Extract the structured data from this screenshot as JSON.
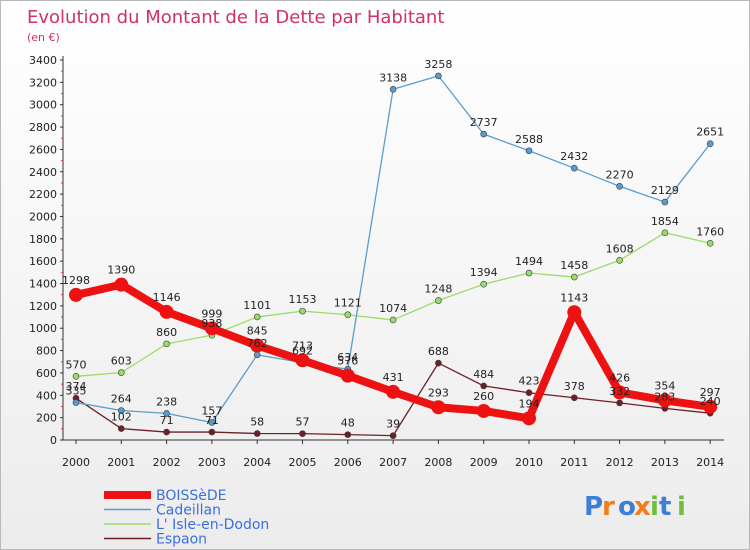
{
  "chart_data": {
    "type": "line",
    "title": "Evolution du Montant de la Dette par Habitant",
    "subtitle": "(en €)",
    "xlabel": "",
    "ylabel": "",
    "x": [
      "2000",
      "2001",
      "2002",
      "2003",
      "2004",
      "2005",
      "2006",
      "2007",
      "2008",
      "2009",
      "2010",
      "2011",
      "2012",
      "2013",
      "2014"
    ],
    "ylim": [
      0,
      3400
    ],
    "yticks": [
      0,
      200,
      400,
      600,
      800,
      1000,
      1200,
      1400,
      1600,
      1800,
      2000,
      2200,
      2400,
      2600,
      2800,
      3000,
      3200,
      3400
    ],
    "grid": false,
    "legend_position": "bottom-left",
    "series": [
      {
        "name": "Espaon",
        "color": "#6e1f26",
        "values": [
          374,
          102,
          71,
          71,
          58,
          57,
          48,
          39,
          688,
          484,
          423,
          378,
          332,
          283,
          240
        ]
      },
      {
        "name": "L' Isle-en-Dodon",
        "color": "#99dd66",
        "values": [
          570,
          603,
          860,
          938,
          1101,
          1153,
          1121,
          1074,
          1248,
          1394,
          1494,
          1458,
          1608,
          1854,
          1760
        ]
      },
      {
        "name": "Cadeillan",
        "color": "#5a9ccc",
        "values": [
          335,
          264,
          238,
          157,
          762,
          692,
          634,
          3138,
          3258,
          2737,
          2588,
          2432,
          2270,
          2129,
          2651
        ]
      },
      {
        "name": "BOISSèDE",
        "color": "#ee1111",
        "values": [
          1298,
          1390,
          1146,
          999,
          845,
          713,
          576,
          431,
          293,
          260,
          194,
          1143,
          426,
          354,
          297
        ]
      }
    ]
  },
  "legend": [
    "BOISSèDE",
    "Cadeillan",
    "L' Isle-en-Dodon",
    "Espaon"
  ],
  "logo_text": "Proxiti"
}
